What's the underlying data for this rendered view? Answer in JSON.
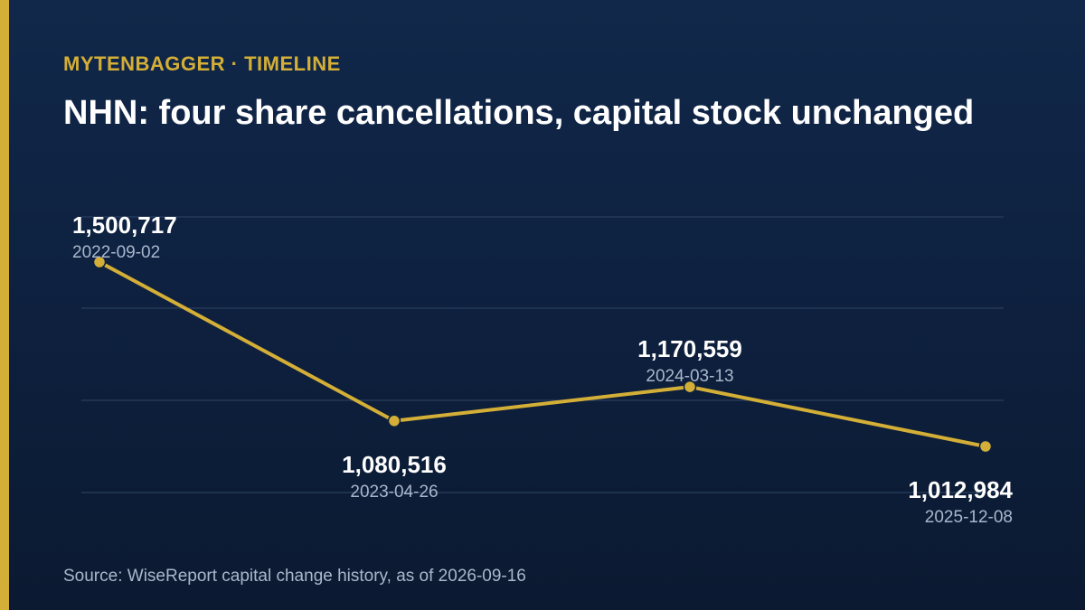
{
  "header": {
    "kicker": "MYTENBAGGER · TIMELINE",
    "title": "NHN: four share cancellations, capital stock unchanged"
  },
  "source": "Source: WiseReport capital change history, as of 2026-09-16",
  "colors": {
    "accent": "#d4af37",
    "value_text": "#ffffff",
    "date_text": "#a9b7cc",
    "grid": "#2f4566"
  },
  "chart_data": {
    "type": "line",
    "title": "NHN: four share cancellations, capital stock unchanged",
    "x": [
      "2022-09-02",
      "2023-04-26",
      "2024-03-13",
      "2025-12-08"
    ],
    "series": [
      {
        "values": [
          1500717,
          1080516,
          1170559,
          1012984
        ],
        "value_labels": [
          "1,500,717",
          "1,080,516",
          "1,170,559",
          "1,012,984"
        ]
      }
    ],
    "ylim": [
      940000,
      1560000
    ],
    "grid": true,
    "legend": "none"
  }
}
